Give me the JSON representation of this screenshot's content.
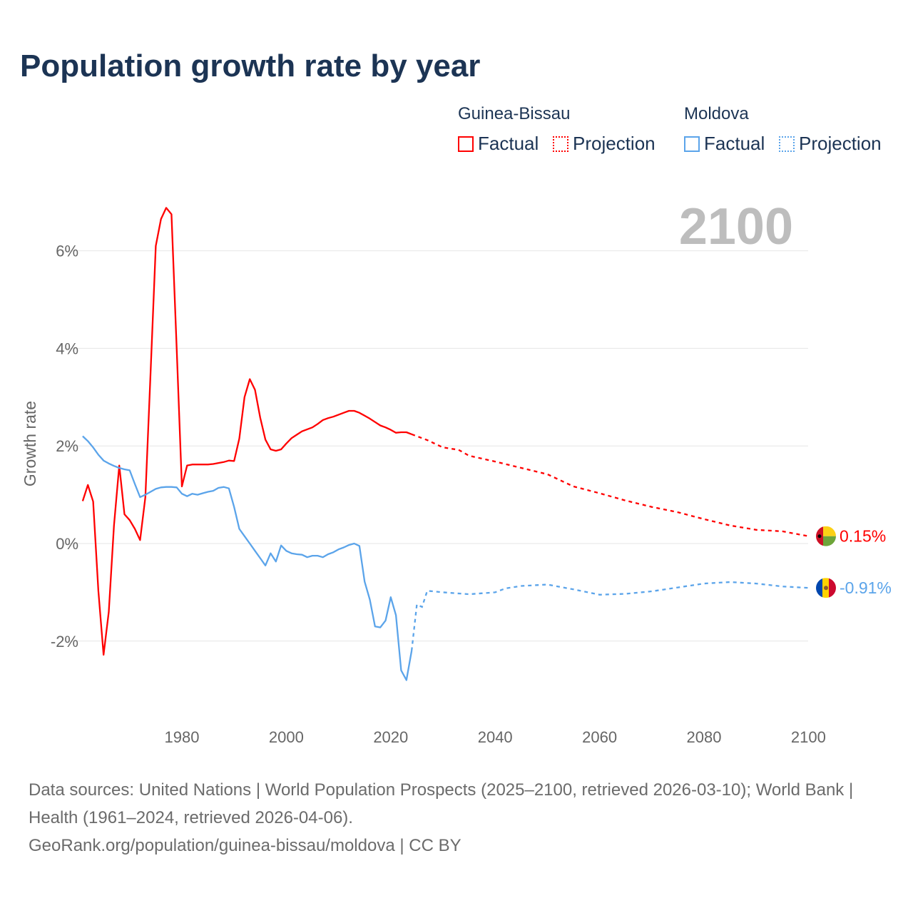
{
  "title": "Population growth rate by year",
  "legend": {
    "groups": [
      {
        "name": "Guinea-Bissau",
        "color": "#ff0000",
        "factual_label": "Factual",
        "projection_label": "Projection"
      },
      {
        "name": "Moldova",
        "color": "#5ba4ea",
        "factual_label": "Factual",
        "projection_label": "Projection"
      }
    ]
  },
  "year_label": "2100",
  "source_lines": [
    "Data sources: United Nations | World Population Prospects (2025–2100, retrieved 2026-03-10); World Bank | Health (1961–2024, retrieved 2026-04-06).",
    "GeoRank.org/population/guinea-bissau/moldova | CC BY"
  ],
  "chart_data": {
    "type": "line",
    "title": "Population growth rate by year",
    "xlabel": "",
    "ylabel": "Growth rate",
    "xlim": [
      1961,
      2100
    ],
    "ylim": [
      -3.5,
      7
    ],
    "x_ticks": [
      1980,
      2000,
      2020,
      2040,
      2060,
      2080,
      2100
    ],
    "y_ticks": [
      {
        "v": 6,
        "label": "6%"
      },
      {
        "v": 4,
        "label": "4%"
      },
      {
        "v": 2,
        "label": "2%"
      },
      {
        "v": 0,
        "label": "0%"
      },
      {
        "v": -2,
        "label": "-2%"
      }
    ],
    "grid": true,
    "series": [
      {
        "name": "Guinea-Bissau",
        "color": "#ff0000",
        "end_label": "0.15%",
        "factual": {
          "x": [
            1961,
            1962,
            1963,
            1964,
            1965,
            1966,
            1967,
            1968,
            1969,
            1970,
            1971,
            1972,
            1973,
            1974,
            1975,
            1976,
            1977,
            1978,
            1979,
            1980,
            1981,
            1982,
            1983,
            1984,
            1985,
            1986,
            1987,
            1988,
            1989,
            1990,
            1991,
            1992,
            1993,
            1994,
            1995,
            1996,
            1997,
            1998,
            1999,
            2000,
            2001,
            2002,
            2003,
            2004,
            2005,
            2006,
            2007,
            2008,
            2009,
            2010,
            2011,
            2012,
            2013,
            2014,
            2015,
            2016,
            2017,
            2018,
            2019,
            2020,
            2021,
            2022,
            2023,
            2024
          ],
          "y": [
            0.87,
            1.2,
            0.86,
            -0.97,
            -2.28,
            -1.4,
            0.37,
            1.6,
            0.6,
            0.48,
            0.3,
            0.07,
            0.95,
            3.5,
            6.1,
            6.65,
            6.88,
            6.75,
            4.0,
            1.17,
            1.6,
            1.62,
            1.62,
            1.62,
            1.62,
            1.63,
            1.65,
            1.67,
            1.7,
            1.69,
            2.15,
            3.0,
            3.37,
            3.15,
            2.58,
            2.13,
            1.93,
            1.9,
            1.93,
            2.05,
            2.16,
            2.23,
            2.3,
            2.34,
            2.38,
            2.45,
            2.53,
            2.57,
            2.6,
            2.64,
            2.68,
            2.72,
            2.72,
            2.68,
            2.62,
            2.56,
            2.49,
            2.42,
            2.38,
            2.33,
            2.27,
            2.28,
            2.28,
            2.24
          ]
        },
        "projection": {
          "x": [
            2024,
            2027,
            2030,
            2033,
            2035,
            2040,
            2045,
            2050,
            2055,
            2060,
            2065,
            2070,
            2075,
            2080,
            2085,
            2090,
            2095,
            2100
          ],
          "y": [
            2.24,
            2.12,
            1.97,
            1.92,
            1.8,
            1.68,
            1.55,
            1.42,
            1.17,
            1.03,
            0.88,
            0.75,
            0.64,
            0.5,
            0.37,
            0.28,
            0.25,
            0.15
          ]
        }
      },
      {
        "name": "Moldova",
        "color": "#5ba4ea",
        "end_label": "-0.91%",
        "factual": {
          "x": [
            1961,
            1962,
            1963,
            1964,
            1965,
            1966,
            1967,
            1968,
            1969,
            1970,
            1971,
            1972,
            1973,
            1974,
            1975,
            1976,
            1977,
            1978,
            1979,
            1980,
            1981,
            1982,
            1983,
            1984,
            1985,
            1986,
            1987,
            1988,
            1989,
            1990,
            1991,
            1992,
            1993,
            1994,
            1995,
            1996,
            1997,
            1998,
            1999,
            2000,
            2001,
            2002,
            2003,
            2004,
            2005,
            2006,
            2007,
            2008,
            2009,
            2010,
            2011,
            2012,
            2013,
            2014,
            2015,
            2016,
            2017,
            2018,
            2019,
            2020,
            2021,
            2022,
            2023,
            2024
          ],
          "y": [
            2.2,
            2.1,
            1.97,
            1.82,
            1.7,
            1.64,
            1.59,
            1.55,
            1.52,
            1.5,
            1.22,
            0.95,
            1.0,
            1.06,
            1.12,
            1.15,
            1.16,
            1.16,
            1.15,
            1.02,
            0.97,
            1.02,
            1.0,
            1.03,
            1.06,
            1.08,
            1.14,
            1.16,
            1.13,
            0.75,
            0.3,
            0.15,
            0.0,
            -0.15,
            -0.3,
            -0.45,
            -0.2,
            -0.37,
            -0.04,
            -0.15,
            -0.2,
            -0.22,
            -0.23,
            -0.28,
            -0.25,
            -0.25,
            -0.28,
            -0.22,
            -0.18,
            -0.12,
            -0.08,
            -0.03,
            0.0,
            -0.05,
            -0.78,
            -1.15,
            -1.7,
            -1.72,
            -1.58,
            -1.1,
            -1.47,
            -2.6,
            -2.8,
            -2.2
          ]
        },
        "projection": {
          "x": [
            2024,
            2025,
            2026,
            2027,
            2030,
            2035,
            2040,
            2042,
            2045,
            2050,
            2055,
            2060,
            2065,
            2070,
            2075,
            2080,
            2085,
            2090,
            2095,
            2100
          ],
          "y": [
            -2.2,
            -1.25,
            -1.3,
            -0.97,
            -1.0,
            -1.04,
            -1.0,
            -0.92,
            -0.87,
            -0.84,
            -0.94,
            -1.05,
            -1.03,
            -0.98,
            -0.9,
            -0.82,
            -0.79,
            -0.82,
            -0.88,
            -0.91
          ]
        }
      }
    ]
  }
}
